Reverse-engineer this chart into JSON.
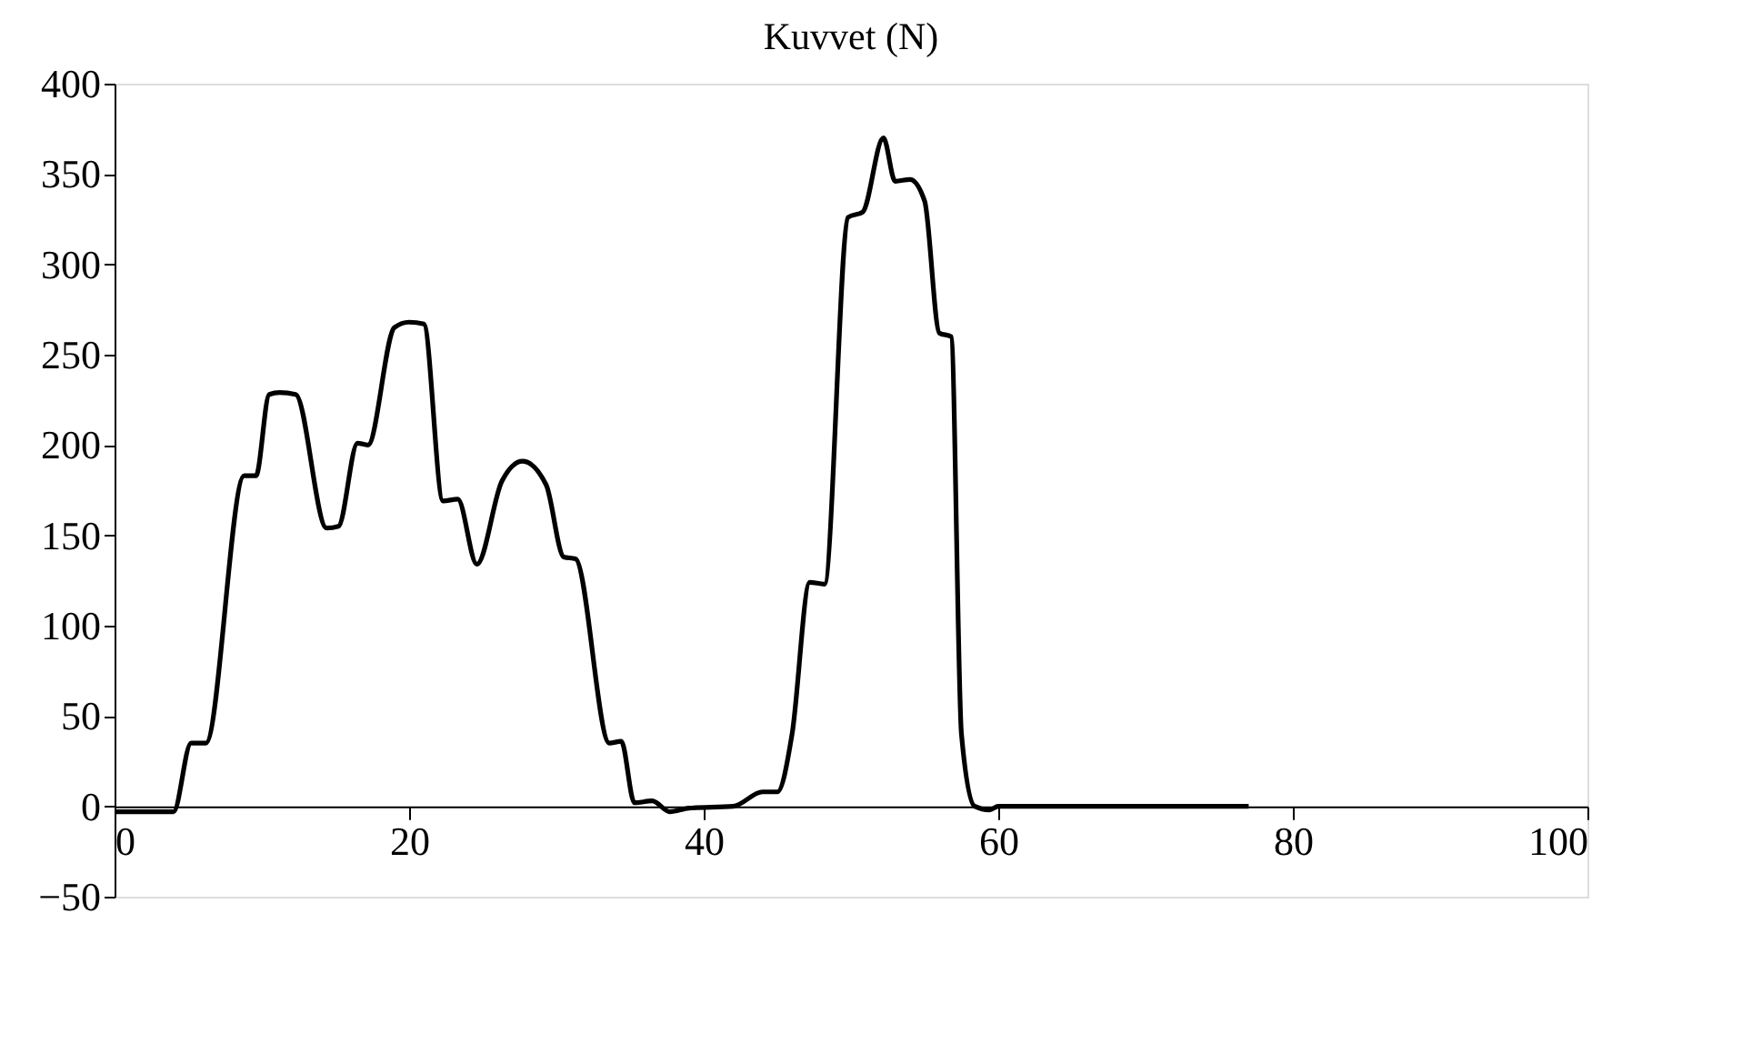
{
  "chart_data": {
    "type": "line",
    "title": "Kuvvet (N)",
    "x": [
      0,
      4,
      5.2,
      6.2,
      8.8,
      9.6,
      10.5,
      11.2,
      12.3,
      14.4,
      15.2,
      16.5,
      17.2,
      19,
      20,
      21,
      22.3,
      23.3,
      24.6,
      26.3,
      27.7,
      29.3,
      30.5,
      31.3,
      33.6,
      34.4,
      35.3,
      36.5,
      37.7,
      39,
      42,
      44,
      45,
      46,
      47.2,
      48.2,
      49.8,
      50.8,
      52.2,
      53,
      54,
      55,
      56,
      56.8,
      57.5,
      58.4,
      59.4,
      60,
      77
    ],
    "series": [
      {
        "color": "#000000",
        "values": [
          -3,
          -3,
          35,
          35,
          183,
          183,
          228,
          229,
          228,
          154,
          155,
          201,
          200,
          265,
          268,
          267,
          169,
          170,
          134,
          180,
          191,
          178,
          138,
          137,
          35,
          36,
          2,
          3,
          -3,
          -1,
          0,
          8,
          8,
          40,
          124,
          123,
          326,
          329,
          370,
          346,
          347,
          335,
          262,
          260,
          40,
          0,
          -2,
          0,
          0
        ]
      }
    ],
    "xlim": [
      0,
      100
    ],
    "xticks": [
      0,
      20,
      40,
      60,
      80,
      100
    ],
    "ylim": [
      -50,
      400
    ],
    "yticks": [
      -50,
      0,
      50,
      100,
      150,
      200,
      250,
      300,
      350,
      400
    ],
    "grid": false,
    "legend": false,
    "marker": "none",
    "line_style": "solid"
  }
}
